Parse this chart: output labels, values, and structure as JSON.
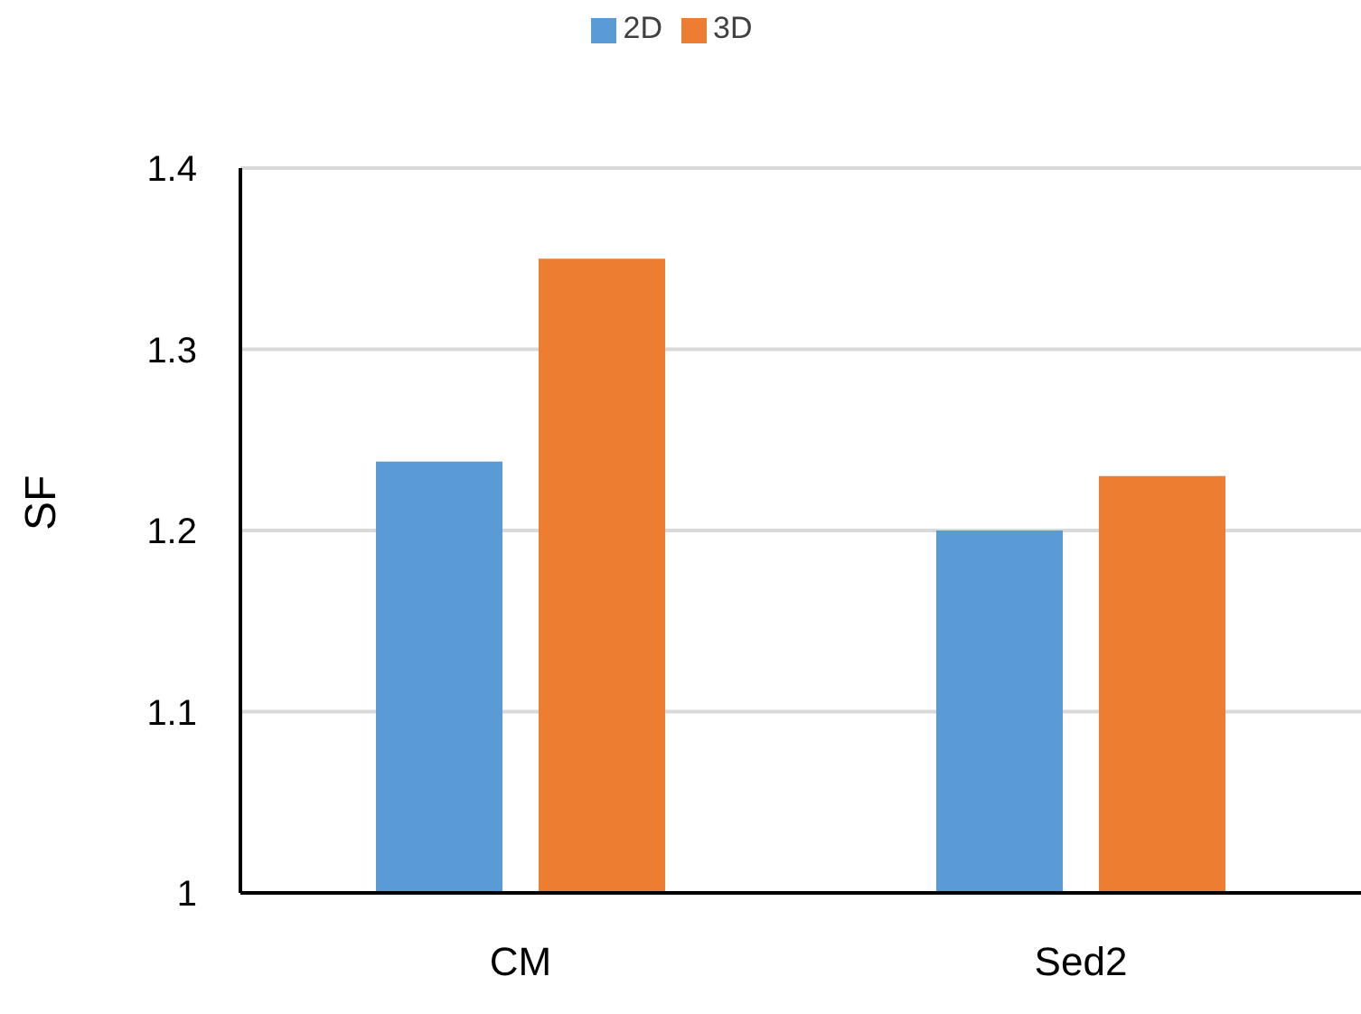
{
  "chart_data": {
    "type": "bar",
    "ylabel": "SF",
    "categories": [
      "CM",
      "Sed2"
    ],
    "series": [
      {
        "name": "2D",
        "color": "#5b9bd5",
        "values": [
          1.238,
          1.2
        ]
      },
      {
        "name": "3D",
        "color": "#ed7d31",
        "values": [
          1.35,
          1.23
        ]
      }
    ],
    "ylim": [
      1,
      1.4
    ],
    "yticks": [
      1,
      1.1,
      1.2,
      1.3,
      1.4
    ],
    "grid": "y",
    "legend": "top"
  }
}
